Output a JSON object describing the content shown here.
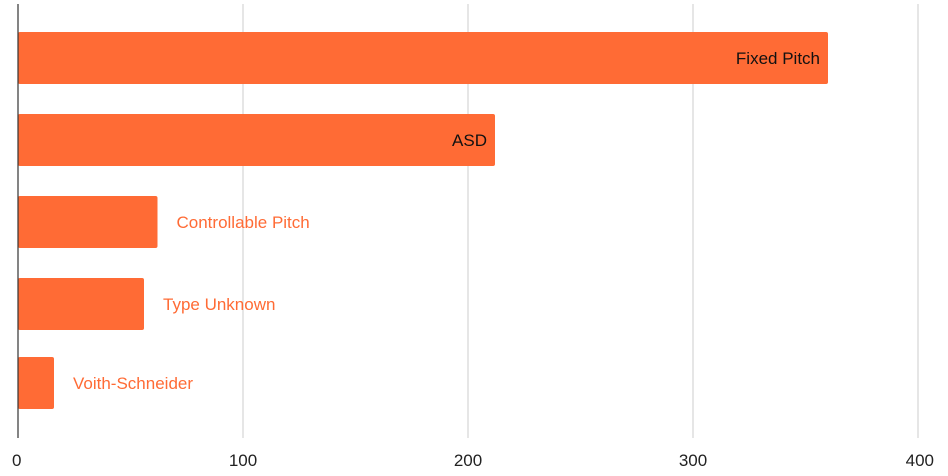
{
  "colors": {
    "bar": "#ff6b35",
    "outside_label": "#ff6b35",
    "inside_label": "#111111",
    "grid": "#cccccc",
    "axis": "#333333",
    "tick_label": "#222222"
  },
  "chart_data": {
    "type": "bar",
    "orientation": "horizontal",
    "categories": [
      "Fixed Pitch",
      "ASD",
      "Controllable Pitch",
      "Type Unknown",
      "Voith-Schneider"
    ],
    "values": [
      360,
      212,
      62,
      56,
      16
    ],
    "xlim": [
      0,
      400
    ],
    "xticks": [
      "0",
      "100",
      "200",
      "300",
      "400"
    ],
    "grid": "vertical",
    "title": "",
    "xlabel": "",
    "ylabel": "",
    "legend": "none",
    "label_placement": [
      "inside",
      "inside",
      "outside",
      "outside",
      "outside"
    ]
  }
}
